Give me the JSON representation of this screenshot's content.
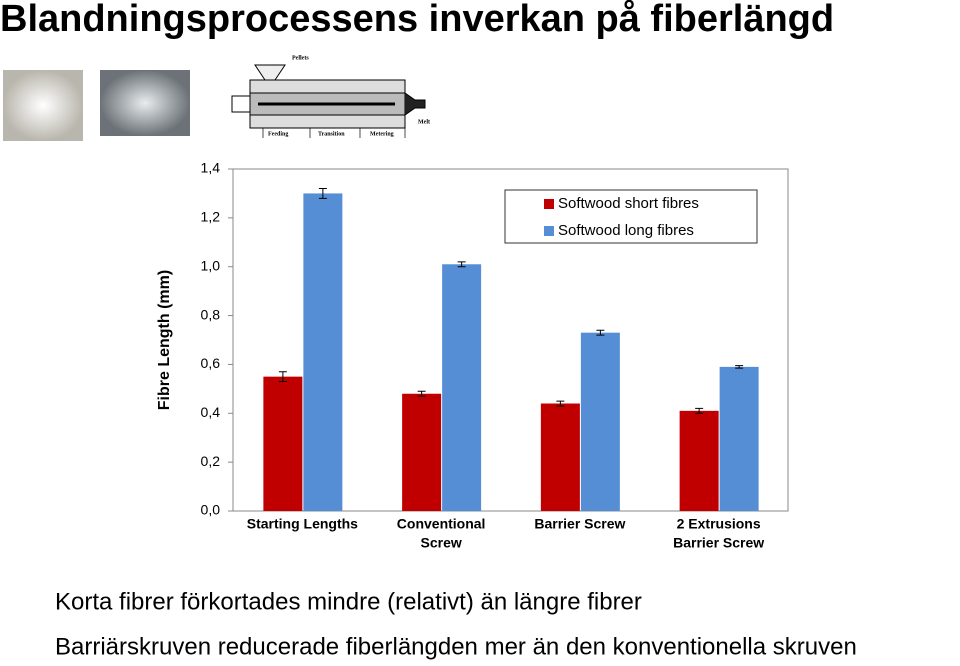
{
  "title": "Blandningsprocessens inverkan på fiberlängd",
  "diagram_labels": [
    "Pellets",
    "Feeding",
    "Transition",
    "Metering",
    "Melt"
  ],
  "bullets": [
    "Korta fibrer förkortades mindre (relativt) än längre fibrer",
    "Barriärskruven reducerade fiberlängden mer än den konventionella skruven"
  ],
  "chart_data": {
    "type": "bar",
    "y_label": "Fibre Length (mm)",
    "categories": [
      [
        "Starting Lengths"
      ],
      [
        "Conventional",
        "Screw"
      ],
      [
        "Barrier Screw"
      ],
      [
        "2 Extrusions",
        "Barrier Screw"
      ]
    ],
    "series": [
      {
        "name": "Softwood short fibres",
        "color": "#c00000",
        "values": [
          0.55,
          0.48,
          0.44,
          0.41
        ],
        "errors": [
          0.02,
          0.01,
          0.01,
          0.01
        ]
      },
      {
        "name": "Softwood long fibres",
        "color": "#558ed5",
        "values": [
          1.3,
          1.01,
          0.73,
          0.59
        ],
        "errors": [
          0.02,
          0.01,
          0.01,
          0.005
        ]
      }
    ],
    "ylim": [
      0,
      1.4
    ],
    "yticks": [
      {
        "value": 0,
        "label": "0,0"
      },
      {
        "value": 0.2,
        "label": "0,2"
      },
      {
        "value": 0.4,
        "label": "0,4"
      },
      {
        "value": 0.6,
        "label": "0,6"
      },
      {
        "value": 0.8,
        "label": "0,8"
      },
      {
        "value": 1.0,
        "label": "1,0"
      },
      {
        "value": 1.2,
        "label": "1,2"
      },
      {
        "value": 1.4,
        "label": "1,4"
      }
    ],
    "legend": "top-right"
  }
}
